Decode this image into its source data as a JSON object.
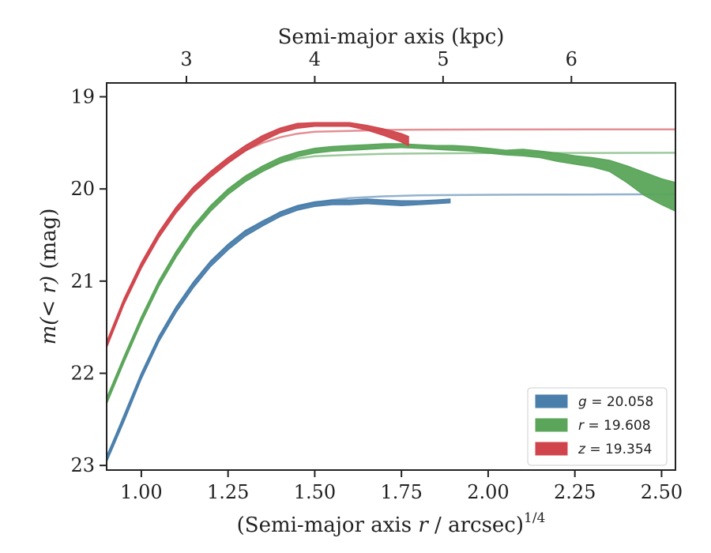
{
  "chart_data": {
    "type": "line",
    "top_axis": {
      "label": "Semi-major axis (kpc)",
      "ticks": [
        {
          "label": "3",
          "x": 1.13
        },
        {
          "label": "4",
          "x": 1.5
        },
        {
          "label": "5",
          "x": 1.87
        },
        {
          "label": "6",
          "x": 2.24
        }
      ]
    },
    "xlabel_main": "(Semi-major axis ",
    "xlabel_var": "r",
    "xlabel_tail": " / arcsec)",
    "xlabel_sup": "1/4",
    "ylabel_pre": "m",
    "ylabel_mid": "(< r)",
    "ylabel_post": " (mag)",
    "xlim": [
      0.9,
      2.54
    ],
    "ylim": [
      23.05,
      18.85
    ],
    "x_ticks": [
      {
        "label": "1.00",
        "value": 1.0
      },
      {
        "label": "1.25",
        "value": 1.25
      },
      {
        "label": "1.50",
        "value": 1.5
      },
      {
        "label": "1.75",
        "value": 1.75
      },
      {
        "label": "2.00",
        "value": 2.0
      },
      {
        "label": "2.25",
        "value": 2.25
      },
      {
        "label": "2.50",
        "value": 2.5
      }
    ],
    "y_ticks": [
      {
        "label": "19",
        "value": 19
      },
      {
        "label": "20",
        "value": 20
      },
      {
        "label": "21",
        "value": 21
      },
      {
        "label": "22",
        "value": 22
      },
      {
        "label": "23",
        "value": 23
      }
    ],
    "legend_position": "lower-right",
    "series": [
      {
        "key": "g",
        "name": "g = 20.058",
        "legend_var": "g",
        "legend_val": " = 20.058",
        "color": "#4a7eab",
        "band": [
          [
            0.9,
            22.96,
            22.9
          ],
          [
            0.95,
            22.52,
            22.46
          ],
          [
            1.0,
            22.06,
            22.0
          ],
          [
            1.05,
            21.66,
            21.6
          ],
          [
            1.1,
            21.34,
            21.28
          ],
          [
            1.15,
            21.07,
            21.01
          ],
          [
            1.2,
            20.84,
            20.78
          ],
          [
            1.25,
            20.66,
            20.6
          ],
          [
            1.3,
            20.51,
            20.45
          ],
          [
            1.35,
            20.4,
            20.35
          ],
          [
            1.4,
            20.3,
            20.25
          ],
          [
            1.45,
            20.23,
            20.18
          ],
          [
            1.5,
            20.19,
            20.14
          ],
          [
            1.55,
            20.17,
            20.12
          ],
          [
            1.6,
            20.17,
            20.12
          ],
          [
            1.65,
            20.16,
            20.11
          ],
          [
            1.7,
            20.17,
            20.12
          ],
          [
            1.75,
            20.18,
            20.13
          ],
          [
            1.8,
            20.17,
            20.13
          ],
          [
            1.85,
            20.16,
            20.12
          ],
          [
            1.89,
            20.15,
            20.11
          ]
        ],
        "fit": [
          [
            0.9,
            22.93
          ],
          [
            0.95,
            22.46
          ],
          [
            1.0,
            22.01
          ],
          [
            1.05,
            21.62
          ],
          [
            1.1,
            21.29
          ],
          [
            1.15,
            21.02
          ],
          [
            1.2,
            20.79
          ],
          [
            1.25,
            20.61
          ],
          [
            1.3,
            20.46
          ],
          [
            1.35,
            20.35
          ],
          [
            1.4,
            20.26
          ],
          [
            1.45,
            20.19
          ],
          [
            1.5,
            20.15
          ],
          [
            1.55,
            20.12
          ],
          [
            1.6,
            20.1
          ],
          [
            1.7,
            20.08
          ],
          [
            1.8,
            20.07
          ],
          [
            1.9,
            20.066
          ],
          [
            2.1,
            20.062
          ],
          [
            2.3,
            20.06
          ],
          [
            2.54,
            20.058
          ]
        ]
      },
      {
        "key": "r",
        "name": "r = 19.608",
        "legend_var": "r",
        "legend_val": " = 19.608",
        "color": "#5aa55a",
        "band": [
          [
            0.9,
            22.33,
            22.27
          ],
          [
            0.95,
            21.88,
            21.82
          ],
          [
            1.0,
            21.45,
            21.39
          ],
          [
            1.05,
            21.06,
            21.0
          ],
          [
            1.1,
            20.74,
            20.68
          ],
          [
            1.15,
            20.46,
            20.4
          ],
          [
            1.2,
            20.24,
            20.18
          ],
          [
            1.25,
            20.06,
            20.0
          ],
          [
            1.3,
            19.92,
            19.86
          ],
          [
            1.35,
            19.81,
            19.75
          ],
          [
            1.4,
            19.72,
            19.66
          ],
          [
            1.45,
            19.65,
            19.6
          ],
          [
            1.5,
            19.61,
            19.56
          ],
          [
            1.55,
            19.59,
            19.54
          ],
          [
            1.6,
            19.58,
            19.53
          ],
          [
            1.65,
            19.57,
            19.52
          ],
          [
            1.7,
            19.56,
            19.51
          ],
          [
            1.75,
            19.55,
            19.51
          ],
          [
            1.8,
            19.56,
            19.52
          ],
          [
            1.85,
            19.57,
            19.53
          ],
          [
            1.9,
            19.58,
            19.53
          ],
          [
            1.95,
            19.59,
            19.54
          ],
          [
            2.0,
            19.61,
            19.56
          ],
          [
            2.05,
            19.63,
            19.58
          ],
          [
            2.1,
            19.64,
            19.57
          ],
          [
            2.15,
            19.66,
            19.59
          ],
          [
            2.2,
            19.7,
            19.61
          ],
          [
            2.25,
            19.73,
            19.64
          ],
          [
            2.3,
            19.76,
            19.66
          ],
          [
            2.35,
            19.81,
            19.69
          ],
          [
            2.4,
            19.93,
            19.75
          ],
          [
            2.45,
            20.07,
            19.82
          ],
          [
            2.5,
            20.17,
            19.89
          ],
          [
            2.54,
            20.24,
            19.93
          ]
        ],
        "fit": [
          [
            0.9,
            22.28
          ],
          [
            0.95,
            21.83
          ],
          [
            1.0,
            21.4
          ],
          [
            1.05,
            21.02
          ],
          [
            1.1,
            20.69
          ],
          [
            1.15,
            20.42
          ],
          [
            1.2,
            20.2
          ],
          [
            1.25,
            20.02
          ],
          [
            1.3,
            19.88
          ],
          [
            1.35,
            19.78
          ],
          [
            1.4,
            19.71
          ],
          [
            1.45,
            19.67
          ],
          [
            1.5,
            19.645
          ],
          [
            1.6,
            19.63
          ],
          [
            1.7,
            19.62
          ],
          [
            1.8,
            19.615
          ],
          [
            2.0,
            19.61
          ],
          [
            2.3,
            19.609
          ],
          [
            2.54,
            19.608
          ]
        ]
      },
      {
        "key": "z",
        "name": "z = 19.354",
        "legend_var": "z",
        "legend_val": " = 19.354",
        "color": "#d0454c",
        "band": [
          [
            0.9,
            21.72,
            21.66
          ],
          [
            0.95,
            21.25,
            21.19
          ],
          [
            1.0,
            20.86,
            20.8
          ],
          [
            1.05,
            20.53,
            20.47
          ],
          [
            1.1,
            20.26,
            20.2
          ],
          [
            1.15,
            20.04,
            19.98
          ],
          [
            1.2,
            19.87,
            19.81
          ],
          [
            1.25,
            19.72,
            19.66
          ],
          [
            1.3,
            19.59,
            19.53
          ],
          [
            1.35,
            19.48,
            19.42
          ],
          [
            1.4,
            19.39,
            19.34
          ],
          [
            1.45,
            19.34,
            19.29
          ],
          [
            1.5,
            19.32,
            19.28
          ],
          [
            1.55,
            19.32,
            19.28
          ],
          [
            1.6,
            19.32,
            19.28
          ],
          [
            1.65,
            19.36,
            19.31
          ],
          [
            1.7,
            19.42,
            19.35
          ],
          [
            1.75,
            19.49,
            19.4
          ],
          [
            1.77,
            19.53,
            19.43
          ]
        ],
        "fit": [
          [
            0.9,
            21.68
          ],
          [
            0.95,
            21.21
          ],
          [
            1.0,
            20.82
          ],
          [
            1.05,
            20.49
          ],
          [
            1.1,
            20.22
          ],
          [
            1.15,
            20.0
          ],
          [
            1.2,
            19.83
          ],
          [
            1.25,
            19.69
          ],
          [
            1.3,
            19.58
          ],
          [
            1.35,
            19.5
          ],
          [
            1.4,
            19.44
          ],
          [
            1.45,
            19.4
          ],
          [
            1.5,
            19.38
          ],
          [
            1.6,
            19.37
          ],
          [
            1.7,
            19.36
          ],
          [
            1.8,
            19.357
          ],
          [
            2.0,
            19.355
          ],
          [
            2.3,
            19.354
          ],
          [
            2.54,
            19.354
          ]
        ]
      }
    ]
  }
}
